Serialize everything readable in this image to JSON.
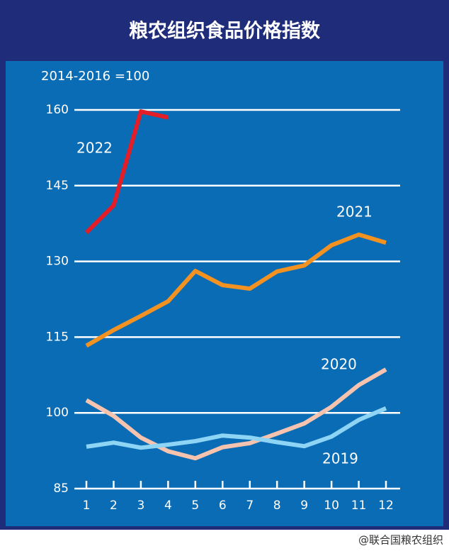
{
  "chart_data": {
    "type": "line",
    "title": "粮农组织食品价格指数",
    "subtitle": "2014-2016 =100",
    "watermark": "@联合国粮农组织",
    "categories": [
      "1",
      "2",
      "3",
      "4",
      "5",
      "6",
      "7",
      "8",
      "9",
      "10",
      "11",
      "12"
    ],
    "ylim": [
      85,
      160
    ],
    "yticks": [
      85,
      100,
      115,
      130,
      145,
      160
    ],
    "grid": true,
    "series": [
      {
        "name": "2022",
        "color": "#e31e26",
        "values": [
          135.7,
          141.1,
          159.7,
          158.5,
          null,
          null,
          null,
          null,
          null,
          null,
          null,
          null
        ]
      },
      {
        "name": "2021",
        "color": "#f39220",
        "values": [
          113.3,
          116.4,
          119.2,
          122.1,
          128.1,
          125.3,
          124.6,
          128.0,
          129.2,
          133.2,
          135.3,
          133.7
        ]
      },
      {
        "name": "2020",
        "color": "#f6c3ae",
        "values": [
          102.5,
          99.4,
          95.1,
          92.4,
          91.0,
          93.2,
          94.0,
          95.9,
          97.9,
          101.2,
          105.5,
          108.6
        ]
      },
      {
        "name": "2019",
        "color": "#8dd4f5",
        "values": [
          93.3,
          94.1,
          93.1,
          93.7,
          94.4,
          95.5,
          95.1,
          94.2,
          93.4,
          95.3,
          98.6,
          100.9
        ]
      }
    ]
  }
}
